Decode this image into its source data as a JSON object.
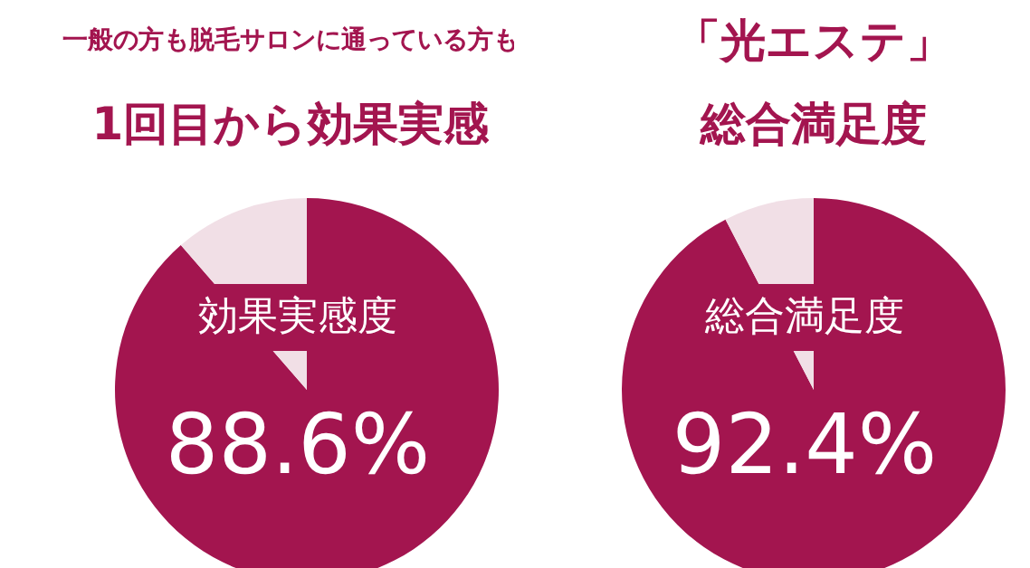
{
  "chart_data": [
    {
      "type": "pie",
      "title": "一般の方も脱毛サロンに通っている方も",
      "subtitle": "1回目から効果実感",
      "categories": [
        null,
        null
      ],
      "values": [
        88.6,
        11.4
      ],
      "colors": [
        "#a3154f",
        "#f1dfe6"
      ],
      "annotations": [
        "効果実感度"
      ],
      "value_labels": [
        "88.6%",
        null
      ]
    },
    {
      "type": "pie",
      "title": "「光エステ」",
      "subtitle": "総合満足度",
      "categories": [
        null,
        null
      ],
      "values": [
        92.4,
        7.6
      ],
      "colors": [
        "#a3154f",
        "#f1dfe6"
      ],
      "annotations": [
        "総合満足度"
      ],
      "value_labels": [
        "92.4%",
        null
      ]
    }
  ]
}
